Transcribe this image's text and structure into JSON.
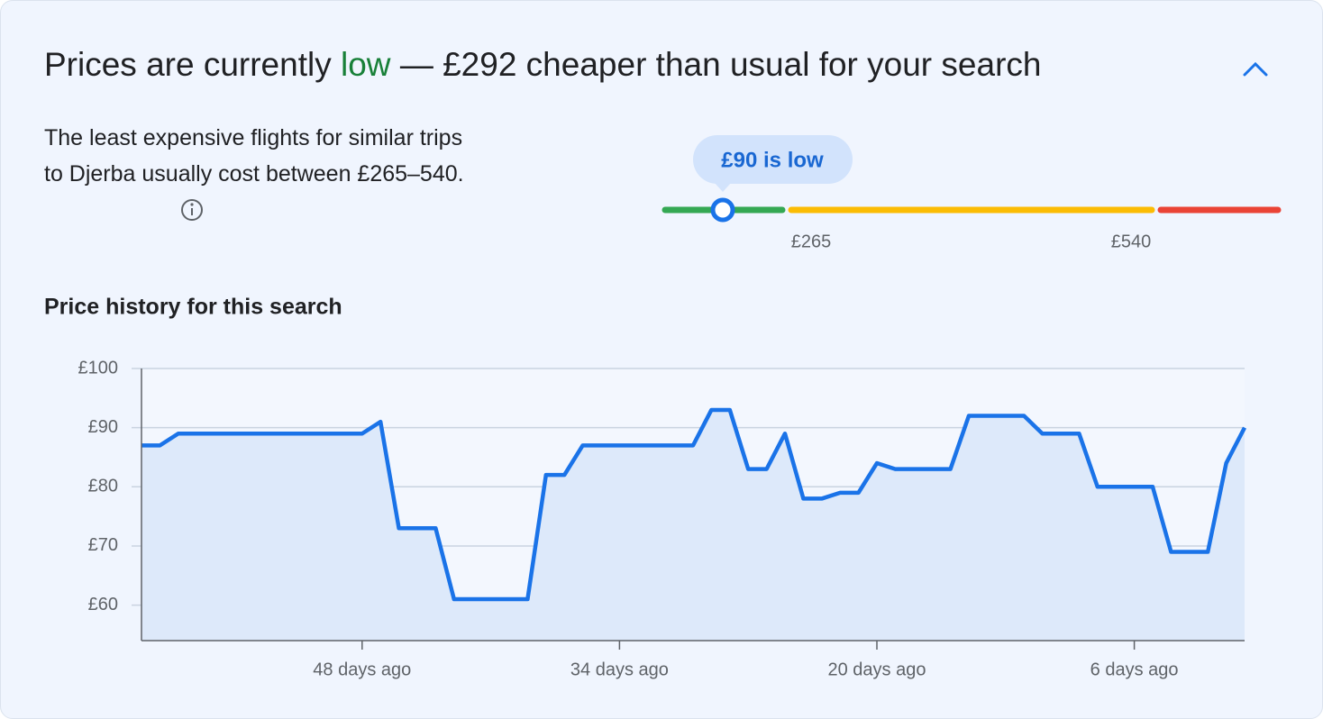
{
  "header": {
    "title_prefix": "Prices are currently",
    "title_status": "low",
    "title_suffix": "— £292 cheaper than usual for your search"
  },
  "summary": {
    "text": "The least expensive flights for similar trips to Djerba usually cost between £265–540."
  },
  "range": {
    "badge": "£90 is low",
    "low_label": "£265",
    "high_label": "£540"
  },
  "chart_data": {
    "type": "line",
    "title": "Price history for this search",
    "color": "#1a73e8",
    "fill": "#dde9fa",
    "grid": true,
    "x": [
      60,
      59,
      58,
      57,
      56,
      55,
      54,
      53,
      52,
      51,
      50,
      49,
      48,
      47,
      46,
      45,
      44,
      43,
      42,
      41,
      40,
      39,
      38,
      37,
      36,
      35,
      34,
      33,
      32,
      31,
      30,
      29,
      28,
      27,
      26,
      25,
      24,
      23,
      22,
      21,
      20,
      19,
      18,
      17,
      16,
      15,
      14,
      13,
      12,
      11,
      10,
      9,
      8,
      7,
      6,
      5,
      4,
      3,
      2,
      1,
      0
    ],
    "values": [
      87,
      87,
      89,
      89,
      89,
      89,
      89,
      89,
      89,
      89,
      89,
      89,
      89,
      91,
      73,
      73,
      73,
      61,
      61,
      61,
      61,
      61,
      82,
      82,
      87,
      87,
      87,
      87,
      87,
      87,
      87,
      93,
      93,
      83,
      83,
      89,
      78,
      78,
      79,
      79,
      84,
      83,
      83,
      83,
      83,
      92,
      92,
      92,
      92,
      89,
      89,
      89,
      80,
      80,
      80,
      80,
      69,
      69,
      69,
      84,
      90
    ],
    "xlim": [
      60,
      0
    ],
    "ylim": [
      54,
      100
    ],
    "xticks": [
      {
        "value": 48,
        "label": "48 days ago"
      },
      {
        "value": 34,
        "label": "34 days ago"
      },
      {
        "value": 20,
        "label": "20 days ago"
      },
      {
        "value": 6,
        "label": "6 days ago"
      }
    ],
    "yticks": [
      {
        "value": 60,
        "label": "£60"
      },
      {
        "value": 70,
        "label": "£70"
      },
      {
        "value": 80,
        "label": "£80"
      },
      {
        "value": 90,
        "label": "£90"
      },
      {
        "value": 100,
        "label": "£100"
      }
    ]
  }
}
